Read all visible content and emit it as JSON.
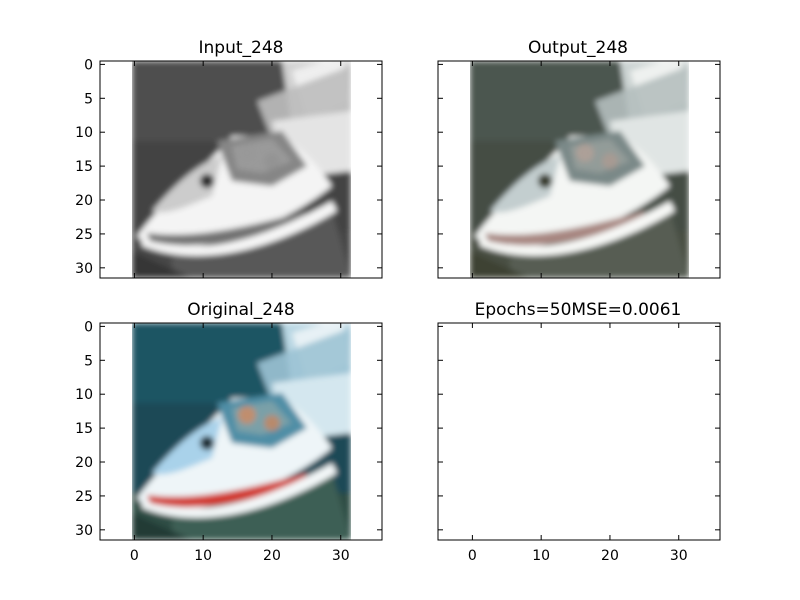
{
  "figure": {
    "panels": [
      {
        "title": "Input_248",
        "image": "grayscale-speedboat",
        "colorize": false,
        "yticks": [
          "0",
          "5",
          "10",
          "15",
          "20",
          "25",
          "30"
        ],
        "xticks": []
      },
      {
        "title": "Output_248",
        "image": "desaturated-speedboat",
        "colorize": true,
        "yticks": [],
        "xticks": []
      },
      {
        "title": "Original_248",
        "image": "color-speedboat",
        "colorize": true,
        "yticks": [
          "0",
          "5",
          "10",
          "15",
          "20",
          "25",
          "30"
        ],
        "xticks": [
          "0",
          "10",
          "20",
          "30"
        ]
      },
      {
        "title": "Epochs=50MSE=0.0061",
        "image": null,
        "colorize": false,
        "yticks": [],
        "xticks": [
          "0",
          "10",
          "20",
          "30"
        ]
      }
    ]
  },
  "colors": {
    "axes_edge": "#000000",
    "background": "#ffffff"
  }
}
